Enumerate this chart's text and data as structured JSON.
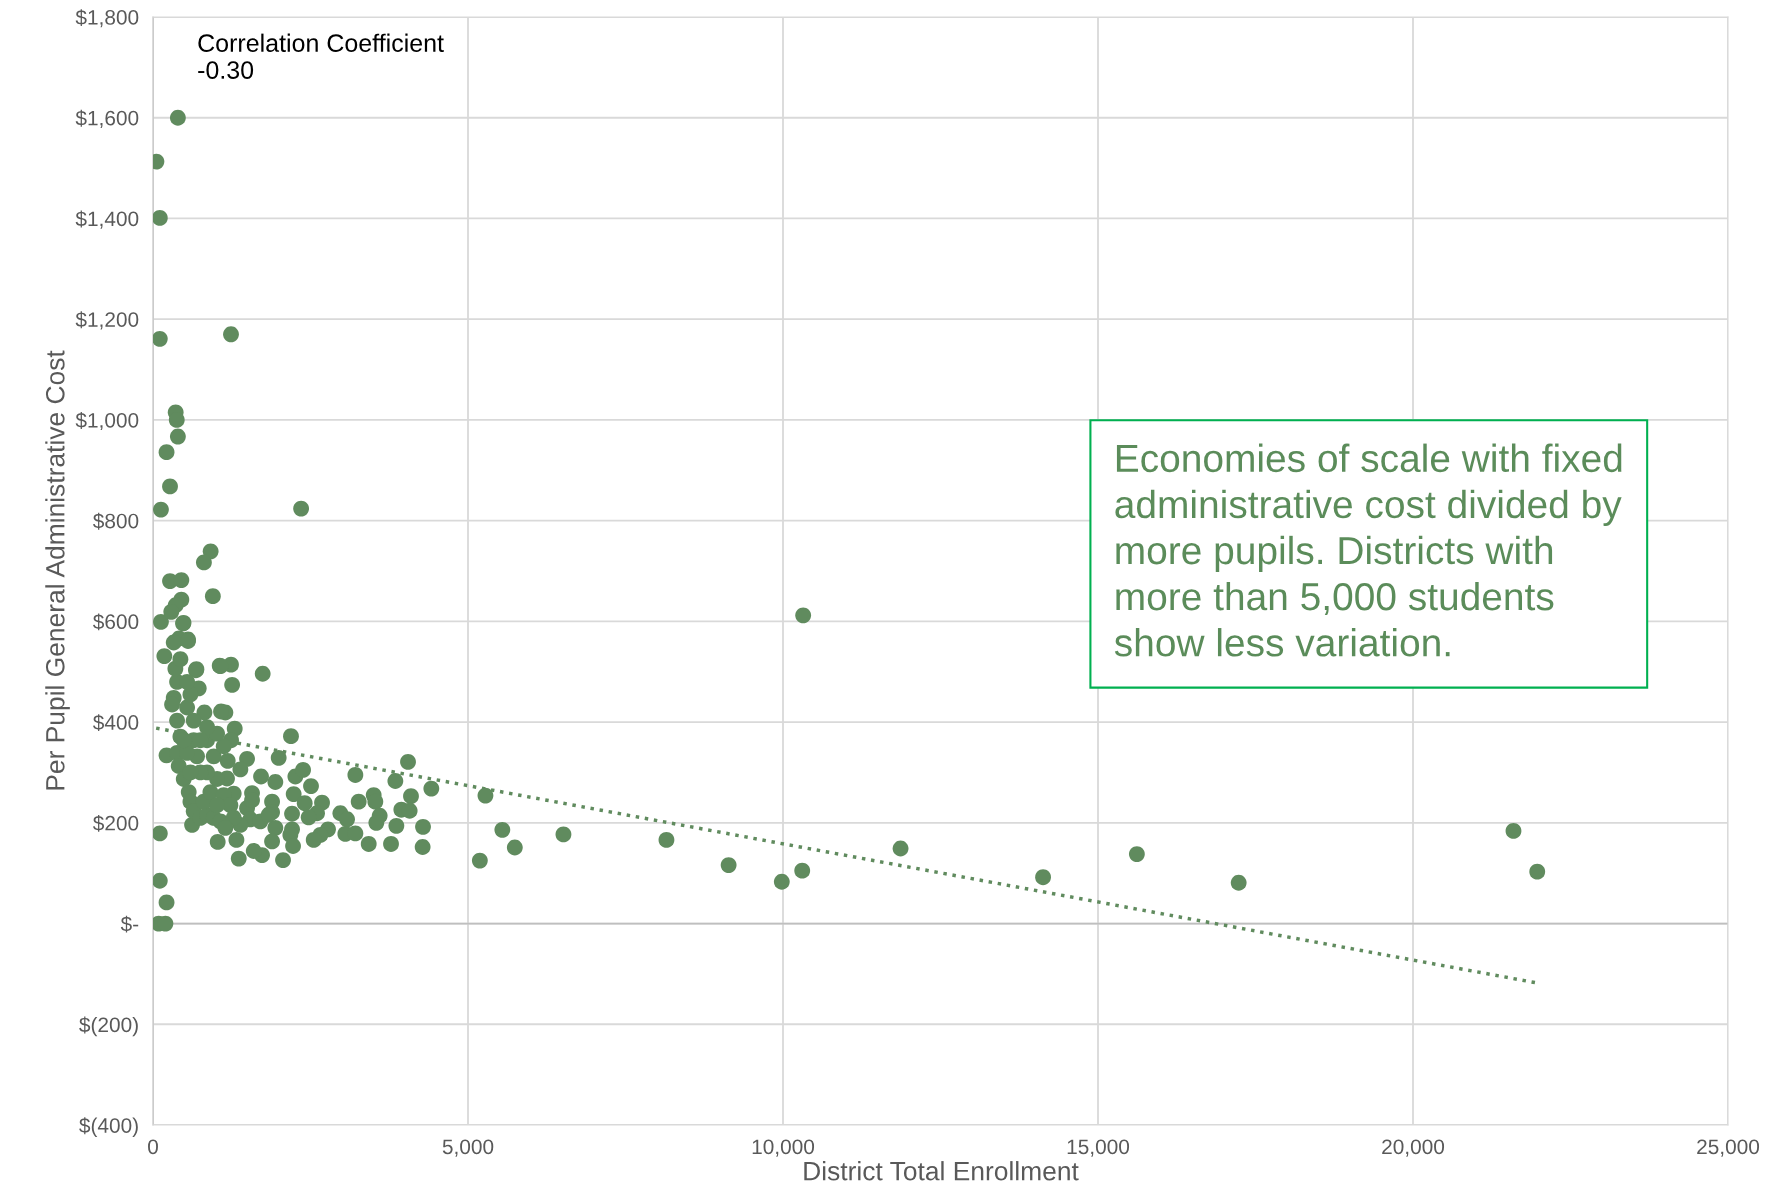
{
  "chart_data": {
    "type": "scatter",
    "xlabel": "District Total Enrollment",
    "ylabel": "Per Pupil General Administrative Cost",
    "annotations": [
      "Correlation Coefficient\n-0.30",
      "Economies of scale with fixed\nadministrative cost divided by\nmore pupils. Districts with\nmore than 5,000 students\nshow less variation."
    ],
    "xlim": [
      0,
      25000
    ],
    "xticks": [
      0,
      {
        "value": 5000,
        "label": "5,000"
      },
      {
        "value": 10000,
        "label": "10,000"
      },
      {
        "value": 15000,
        "label": "15,000"
      },
      {
        "value": 20000,
        "label": "20,000"
      },
      {
        "value": 25000,
        "label": "25,000"
      }
    ],
    "ylim": [
      -400,
      1800
    ],
    "yticks": [
      {
        "value": -400,
        "label": "$(400)"
      },
      {
        "value": -200,
        "label": "$(200)"
      },
      {
        "value": 0,
        "label": "$-"
      },
      {
        "value": 200,
        "label": "$200"
      },
      {
        "value": 400,
        "label": "$400"
      },
      {
        "value": 600,
        "label": "$600"
      },
      {
        "value": 800,
        "label": "$800"
      },
      {
        "value": 1000,
        "label": "$1,000"
      },
      {
        "value": 1200,
        "label": "$1,200"
      },
      {
        "value": 1400,
        "label": "$1,400"
      },
      {
        "value": 1600,
        "label": "$1,600"
      },
      {
        "value": 1800,
        "label": "$1,800"
      }
    ],
    "grid": true,
    "legend": false,
    "marker": "circle",
    "series": [
      {
        "color": "#608b5e",
        "x": [
          395,
          54,
          108,
          108,
          1238,
          360,
          377,
          395,
          215,
          270,
          126,
          2351,
          915,
          808,
          270,
          450,
          950,
          450,
          126,
          485,
          360,
          180,
          290,
          556,
          413,
          1059,
          1238,
          1741,
          682,
          1256,
          215,
          2190,
          108,
          108,
          215,
          90,
          197,
          10320,
          5277,
          5545,
          5743,
          6515,
          8150,
          9137,
          9981,
          10305,
          11866,
          14128,
          15617,
          17233,
          21595,
          21972,
          5188,
          1995,
          1493,
          1387,
          1715,
          1942,
          2260,
          2382,
          2508,
          2233,
          2408,
          2683,
          1890,
          1572,
          1493,
          1890,
          2207,
          2604,
          2471,
          2974,
          3080,
          3212,
          3503,
          3529,
          3265,
          3847,
          4048,
          4095,
          3942,
          4074,
          4418,
          3598,
          3545,
          3863,
          4286,
          3053,
          3212,
          3424,
          3778,
          4280,
          2778,
          2657,
          2551,
          2207,
          2180,
          2223,
          1942,
          1890,
          2064,
          1731,
          1599,
          1361,
          1324,
          1027,
          620,
          1546,
          1704,
          1387,
          1837,
          1572,
          1281,
          1175,
          1186,
          1297,
          1239,
          1149,
          1080,
          816,
          1070,
          726,
          689,
          556,
          477,
          329,
          382,
          355,
          435,
          329,
          303,
          382,
          435,
          382,
          408,
          488,
          567,
          594,
          646,
          752,
          858,
          964,
          1070,
          805,
          911,
          1017,
          1122,
          858,
          699,
          964,
          1122,
          646,
          858,
          1017,
          646,
          858,
          541,
          594,
          541,
          752,
          541,
          752,
          594,
          488,
          1228,
          1017,
          1281,
          1149
        ],
        "values": [
          1600,
          1513,
          1401,
          1161,
          1170,
          1015,
          1000,
          967,
          936,
          868,
          822,
          824,
          739,
          717,
          680,
          682,
          650,
          643,
          599,
          597,
          632,
          531,
          619,
          564,
          566,
          512,
          514,
          496,
          503,
          474,
          334,
          372,
          179,
          85,
          42,
          0,
          0,
          612,
          254,
          186,
          151,
          177,
          166,
          116,
          83,
          105,
          149,
          92,
          138,
          81,
          184,
          103,
          125,
          329,
          327,
          306,
          292,
          281,
          292,
          305,
          273,
          257,
          239,
          240,
          242,
          259,
          229,
          221,
          218,
          219,
          211,
          219,
          207,
          295,
          255,
          242,
          242,
          283,
          321,
          253,
          226,
          224,
          268,
          214,
          200,
          194,
          192,
          178,
          179,
          158,
          158,
          152,
          187,
          176,
          166,
          187,
          176,
          154,
          190,
          163,
          126,
          136,
          144,
          129,
          166,
          162,
          196,
          207,
          203,
          196,
          216,
          245,
          258,
          288,
          323,
          387,
          364,
          419,
          421,
          419,
          511,
          467,
          505,
          561,
          596,
          448,
          480,
          506,
          525,
          558,
          435,
          403,
          371,
          339,
          313,
          287,
          261,
          242,
          223,
          210,
          216,
          210,
          203,
          242,
          261,
          287,
          255,
          300,
          332,
          332,
          352,
          364,
          364,
          377,
          403,
          390,
          429,
          455,
          480,
          364,
          339,
          300,
          300,
          364,
          235,
          235,
          210,
          190
        ]
      },
      {
        "type": "line",
        "line_style": "dotted",
        "marker": "none",
        "color": "#608b5e",
        "x": [
          50,
          21972
        ],
        "values": [
          388,
          -118
        ]
      }
    ]
  }
}
